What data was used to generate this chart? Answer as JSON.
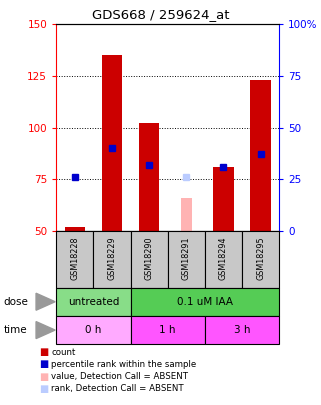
{
  "title": "GDS668 / 259624_at",
  "samples": [
    "GSM18228",
    "GSM18229",
    "GSM18290",
    "GSM18291",
    "GSM18294",
    "GSM18295"
  ],
  "red_bars": [
    52,
    135,
    102,
    null,
    81,
    123
  ],
  "blue_markers": [
    76,
    90,
    82,
    null,
    81,
    87
  ],
  "pink_bar": [
    null,
    null,
    null,
    66,
    null,
    null
  ],
  "lightblue_marker": [
    null,
    null,
    null,
    76,
    null,
    null
  ],
  "red_base": 50,
  "pink_base": 50,
  "ylim_left": [
    50,
    150
  ],
  "ylim_right": [
    0,
    100
  ],
  "yticks_left": [
    50,
    75,
    100,
    125,
    150
  ],
  "yticks_right": [
    0,
    25,
    50,
    75,
    100
  ],
  "yticklabels_right": [
    "0",
    "25",
    "50",
    "75",
    "100%"
  ],
  "bar_color_red": "#CC0000",
  "bar_color_pink": "#FFB3B3",
  "marker_color_blue": "#0000CC",
  "marker_color_lightblue": "#BBCCFF",
  "sample_bg": "#C8C8C8",
  "dose_color_untreated": "#88DD88",
  "dose_color_treated": "#55CC55",
  "time_color_light": "#FFAAFF",
  "time_color_dark": "#FF55FF",
  "bar_width": 0.55,
  "grid_lines": [
    75,
    100,
    125
  ]
}
